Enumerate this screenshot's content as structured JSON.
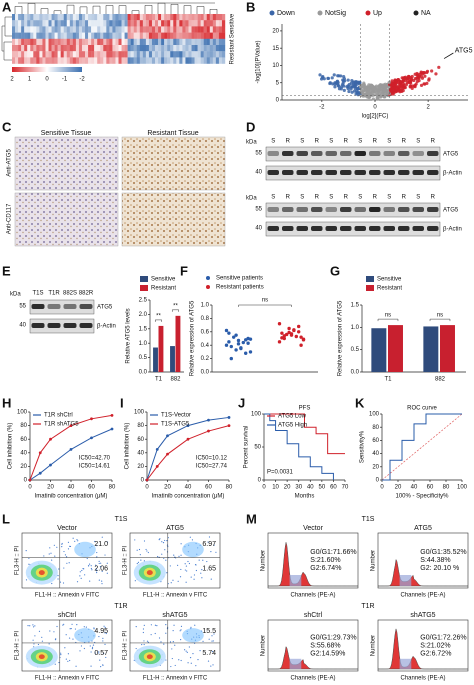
{
  "panels": {
    "A": {
      "label": "A",
      "rows": [
        "Sensitive",
        "Resistant"
      ],
      "scale": [
        2,
        1,
        0,
        -1,
        -2
      ]
    },
    "B": {
      "label": "B",
      "legend": [
        {
          "name": "Down",
          "color": "#3b66a8"
        },
        {
          "name": "NotSig",
          "color": "#9a9a9a"
        },
        {
          "name": "Up",
          "color": "#d0202a"
        },
        {
          "name": "NA",
          "color": "#222222"
        }
      ],
      "chart": {
        "type": "volcano",
        "ylabel": "-log[10](PValue)",
        "xlabel": "log[2](FC)",
        "xlim": [
          -3.5,
          3.5
        ],
        "ylim": [
          0,
          22
        ],
        "xticks": [
          -2,
          0,
          2
        ],
        "yticks": [
          0,
          5,
          10,
          15,
          20
        ]
      },
      "annotation": "ATG5"
    },
    "C": {
      "label": "C",
      "columns": [
        "Sensitive Tissue",
        "Resistant Tissue"
      ],
      "rows": [
        "Anti-ATG5",
        "Anti-CD117"
      ]
    },
    "D": {
      "label": "D",
      "unit": "kDa",
      "markers": [
        55,
        40
      ],
      "lanes": [
        "S",
        "R",
        "S",
        "R",
        "S",
        "R",
        "S",
        "R",
        "S",
        "R",
        "S",
        "R"
      ],
      "bands": [
        "ATG5",
        "β-Actin"
      ]
    },
    "E": {
      "label": "E",
      "unit": "kDa",
      "markers": [
        55,
        40
      ],
      "lanes": [
        "T1S",
        "T1R",
        "882S",
        "882R"
      ],
      "bands": [
        "ATG5",
        "β-Actin"
      ],
      "chart": {
        "type": "bar",
        "ylabel": "Relative ATG5 levels",
        "categories": [
          "T1",
          "882"
        ],
        "series": [
          {
            "name": "Sensitive",
            "color": "#2f4b7c",
            "values": [
              0.85,
              0.9
            ]
          },
          {
            "name": "Resistant",
            "color": "#c8202f",
            "values": [
              1.6,
              1.95
            ]
          }
        ],
        "ylim": [
          0,
          2.5
        ],
        "yticks": [
          {
            "value": 0,
            "label": "0.0"
          },
          0.5,
          {
            "value": 1,
            "label": "1.0"
          },
          1.5,
          {
            "value": 2,
            "label": "2.0"
          },
          2.5
        ],
        "annotations": [
          "**",
          "**"
        ]
      }
    },
    "F": {
      "label": "F",
      "chart": {
        "type": "scatter",
        "ylabel": "Relative expression of ATG5",
        "series": [
          {
            "name": "Sensitive patients",
            "color": "#2a5caa",
            "values": [
              0.62,
              0.55,
              0.48,
              0.45,
              0.42,
              0.5,
              0.38,
              0.35,
              0.3,
              0.52,
              0.44,
              0.4,
              0.33,
              0.28,
              0.58,
              0.47,
              0.43,
              0.2,
              0.36,
              0.49
            ]
          },
          {
            "name": "Resistant patients",
            "color": "#d0202a",
            "values": [
              0.72,
              0.65,
              0.6,
              0.58,
              0.55,
              0.52,
              0.5,
              0.62,
              0.48,
              0.56,
              0.53,
              0.45,
              0.59,
              0.68,
              0.51,
              0.57,
              0.4,
              0.54,
              0.63,
              0.49
            ]
          }
        ],
        "ylim": [
          0,
          1
        ],
        "yticks": [
          {
            "value": 0,
            "label": "0.0"
          },
          0.2,
          0.4,
          0.6,
          0.8,
          {
            "value": 1,
            "label": "1.0"
          }
        ],
        "annotation": "ns"
      }
    },
    "G": {
      "label": "G",
      "chart": {
        "type": "bar",
        "ylabel": "Relative expression of ATG5",
        "categories": [
          "T1",
          "882"
        ],
        "series": [
          {
            "name": "Sensitive",
            "color": "#2f4b7c",
            "values": [
              0.98,
              1.02
            ]
          },
          {
            "name": "Resistant",
            "color": "#c8202f",
            "values": [
              1.05,
              1.05
            ]
          }
        ],
        "ylim": [
          0,
          1.5
        ],
        "yticks": [
          {
            "value": 0,
            "label": "0.0"
          },
          0.5,
          {
            "value": 1,
            "label": "1.0"
          },
          1.5
        ],
        "annotations": [
          "ns",
          "ns"
        ]
      }
    },
    "H": {
      "label": "H",
      "chart": {
        "type": "line",
        "xlabel": "Imatinib concentration (μM)",
        "ylabel": "Cell inhibition (%)",
        "x": [
          0,
          10,
          20,
          40,
          60,
          80
        ],
        "series": [
          {
            "name": "T1R shCtrl",
            "color": "#2a5caa",
            "values": [
              0,
              10,
              22,
              45,
              62,
              75
            ]
          },
          {
            "name": "T1R shATG5",
            "color": "#d0202a",
            "values": [
              0,
              40,
              60,
              80,
              90,
              95
            ]
          }
        ],
        "xlim": [
          0,
          80
        ],
        "xticks": [
          0,
          20,
          40,
          60,
          80
        ],
        "ylim": [
          0,
          100
        ],
        "yticks": [
          0,
          20,
          40,
          60,
          80,
          100
        ],
        "annotations": [
          "IC50=42.70",
          "IC50=14.61"
        ]
      }
    },
    "I": {
      "label": "I",
      "chart": {
        "type": "line",
        "xlabel": "Imatinib concentration (μM)",
        "ylabel": "Cell inhibition (%)",
        "x": [
          0,
          10,
          20,
          40,
          60,
          80
        ],
        "series": [
          {
            "name": "T1S-Vector",
            "color": "#2a5caa",
            "values": [
              0,
              45,
              65,
              80,
              88,
              92
            ]
          },
          {
            "name": "T1S-ATG5",
            "color": "#d0202a",
            "values": [
              0,
              20,
              38,
              60,
              72,
              80
            ]
          }
        ],
        "xlim": [
          0,
          80
        ],
        "xticks": [
          0,
          20,
          40,
          60,
          80
        ],
        "ylim": [
          0,
          100
        ],
        "yticks": [
          0,
          20,
          40,
          60,
          80,
          100
        ],
        "annotations": [
          "IC50=10.12",
          "IC50=27.74"
        ]
      }
    },
    "J": {
      "label": "J",
      "chart": {
        "type": "step",
        "title": "PFS",
        "xlabel": "Months",
        "ylabel": "Percent survival",
        "series": [
          {
            "name": "ATG5 Low",
            "color": "#d0202a",
            "x": [
              0,
              20,
              35,
              45,
              55,
              70
            ],
            "values": [
              100,
              100,
              80,
              70,
              40,
              40
            ]
          },
          {
            "name": "ATG5 High",
            "color": "#2a5caa",
            "x": [
              0,
              5,
              10,
              20,
              30,
              40,
              50,
              60
            ],
            "values": [
              100,
              90,
              75,
              55,
              35,
              20,
              10,
              0
            ]
          }
        ],
        "xlim": [
          0,
          70
        ],
        "xticks": [
          0,
          10,
          20,
          30,
          40,
          50,
          60,
          70
        ],
        "ylim": [
          0,
          100
        ],
        "yticks": [
          0,
          50,
          100
        ],
        "annotation": "P=0.0031"
      }
    },
    "K": {
      "label": "K",
      "chart": {
        "type": "roc",
        "title": "ROC curve",
        "xlabel": "100% - Specificity%",
        "ylabel": "Sensitivity%",
        "series": [
          {
            "color": "#2a5caa",
            "x": [
              0,
              10,
              10,
              25,
              25,
              40,
              40,
              55,
              55,
              100
            ],
            "values": [
              0,
              0,
              30,
              30,
              60,
              60,
              85,
              85,
              100,
              100
            ]
          }
        ],
        "xlim": [
          0,
          100
        ],
        "xticks": [
          0,
          20,
          40,
          60,
          80,
          100
        ],
        "ylim": [
          0,
          100
        ],
        "yticks": [
          0,
          20,
          40,
          60,
          80,
          100
        ]
      }
    },
    "L": {
      "label": "L",
      "ylabel": "FL3-H :: PI",
      "xlabel": "FL1-H :: Annexin v FITC",
      "groups": [
        {
          "title": "T1S",
          "plots": [
            {
              "name": "Vector",
              "q2": "21.0",
              "q3": "2.06"
            },
            {
              "name": "ATG5",
              "q2": "6.97",
              "q3": "1.65"
            }
          ]
        },
        {
          "title": "T1R",
          "plots": [
            {
              "name": "shCtrl",
              "q2": "4.95",
              "q3": "0.57"
            },
            {
              "name": "shATG5",
              "q2": "15.5",
              "q3": "5.74"
            }
          ]
        }
      ]
    },
    "M": {
      "label": "M",
      "ylabel": "Number",
      "xlabel": "Channels (PE-A)",
      "groups": [
        {
          "title": "T1S",
          "plots": [
            {
              "name": "Vector",
              "g1": "G0/G1:71.66%",
              "s": "S:21.60%",
              "g2": "G2:6.74%"
            },
            {
              "name": "ATG5",
              "g1": "G0/G1:35.52%",
              "s": "S:44.38%",
              "g2": "G2: 20.10 %"
            }
          ]
        },
        {
          "title": "T1R",
          "plots": [
            {
              "name": "shCtrl",
              "g1": "G0/G1:29.73%",
              "s": "S:55.68%",
              "g2": "G2:14.59%"
            },
            {
              "name": "shATG5",
              "g1": "G0/G1:72.26%",
              "s": "S:21.02%",
              "g2": "G2:6.72%"
            }
          ]
        }
      ]
    }
  }
}
